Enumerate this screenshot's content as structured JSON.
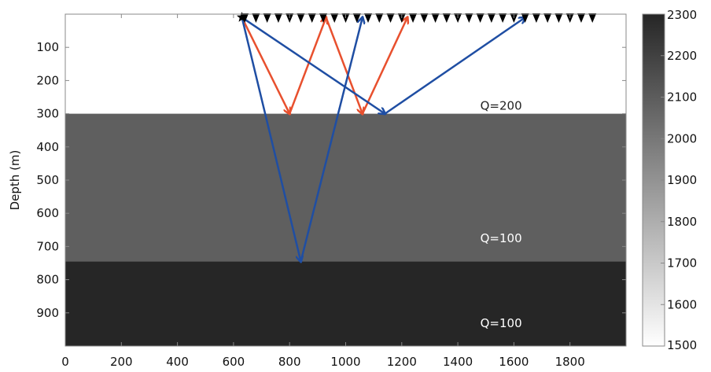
{
  "chart_data": {
    "type": "heatmap",
    "xlabel": "",
    "ylabel": "Depth (m)",
    "xlim": [
      0,
      2000
    ],
    "ylim": [
      1000,
      0
    ],
    "x_ticks": [
      0,
      200,
      400,
      600,
      800,
      1000,
      1200,
      1400,
      1600,
      1800
    ],
    "y_ticks": [
      100,
      200,
      300,
      400,
      500,
      600,
      700,
      800,
      900
    ],
    "grid": false,
    "layers": [
      {
        "top": 0,
        "bottom": 300,
        "value": 1500,
        "color": "#ffffff",
        "label": "Q=200"
      },
      {
        "top": 300,
        "bottom": 745,
        "value": 2000,
        "color": "#5f5f5f",
        "label": "Q=100"
      },
      {
        "top": 745,
        "bottom": 1000,
        "value": 2300,
        "color": "#262626",
        "label": "Q=100"
      }
    ],
    "colorbar": {
      "min": 1500,
      "max": 2300,
      "ticks": [
        1500,
        1600,
        1700,
        1800,
        1900,
        2000,
        2100,
        2200,
        2300
      ],
      "color_low": "#ffffff",
      "color_high": "#262626"
    },
    "source": {
      "x": 630,
      "y": 10
    },
    "receivers": {
      "x_start": 640,
      "x_end": 1880,
      "spacing": 40,
      "y": 10
    },
    "ray_paths": [
      {
        "color": "#e8502e",
        "points": [
          [
            630,
            10
          ],
          [
            800,
            300
          ],
          [
            930,
            10
          ]
        ]
      },
      {
        "color": "#e8502e",
        "points": [
          [
            930,
            10
          ],
          [
            1060,
            300
          ],
          [
            1220,
            10
          ]
        ]
      },
      {
        "color": "#1f4ea3",
        "points": [
          [
            630,
            10
          ],
          [
            840,
            745
          ],
          [
            1060,
            10
          ]
        ]
      },
      {
        "color": "#1f4ea3",
        "points": [
          [
            630,
            10
          ],
          [
            1140,
            300
          ],
          [
            1640,
            10
          ]
        ]
      }
    ]
  }
}
